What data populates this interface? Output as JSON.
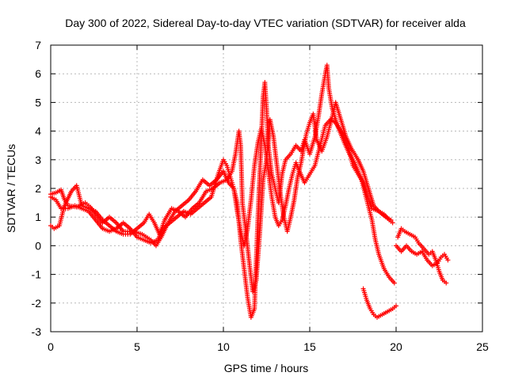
{
  "chart_data": {
    "type": "scatter",
    "title": "Day 300 of 2022, Sidereal Day-to-day VTEC variation (SDTVAR) for receiver alda",
    "xlabel": "GPS time / hours",
    "ylabel": "SDTVAR / TECUs",
    "xlim": [
      0,
      25
    ],
    "ylim": [
      -3,
      7
    ],
    "xticks": [
      0,
      5,
      10,
      15,
      20,
      25
    ],
    "yticks": [
      -3,
      -2,
      -1,
      0,
      1,
      2,
      3,
      4,
      5,
      6,
      7
    ],
    "grid": true,
    "marker": "+",
    "series": [
      {
        "name": "trace-1",
        "color": "#ff0000",
        "points": [
          [
            0.0,
            1.8
          ],
          [
            0.3,
            1.85
          ],
          [
            0.6,
            1.95
          ],
          [
            0.8,
            1.6
          ],
          [
            1.0,
            1.4
          ],
          [
            1.5,
            1.35
          ],
          [
            2.0,
            1.5
          ],
          [
            2.3,
            1.35
          ],
          [
            2.6,
            1.1
          ],
          [
            3.0,
            0.8
          ],
          [
            3.4,
            1.0
          ],
          [
            3.8,
            0.8
          ],
          [
            4.2,
            0.5
          ],
          [
            4.8,
            0.5
          ],
          [
            5.3,
            0.4
          ],
          [
            5.8,
            0.2
          ],
          [
            6.1,
            0.0
          ],
          [
            6.4,
            0.3
          ],
          [
            6.8,
            0.8
          ],
          [
            7.2,
            1.2
          ],
          [
            7.6,
            1.4
          ],
          [
            8.0,
            1.6
          ],
          [
            8.4,
            1.9
          ],
          [
            8.8,
            2.3
          ],
          [
            9.2,
            2.1
          ],
          [
            9.6,
            2.3
          ],
          [
            10.0,
            2.6
          ],
          [
            10.3,
            2.2
          ],
          [
            10.6,
            2.0
          ],
          [
            10.8,
            1.5
          ],
          [
            11.0,
            0.2
          ],
          [
            11.2,
            -0.8
          ],
          [
            11.4,
            -1.8
          ],
          [
            11.6,
            -2.5
          ],
          [
            11.8,
            -2.2
          ],
          [
            11.9,
            -0.5
          ],
          [
            12.0,
            1.0
          ],
          [
            12.2,
            3.8
          ],
          [
            12.3,
            5.2
          ],
          [
            12.4,
            5.7
          ],
          [
            12.5,
            4.8
          ],
          [
            12.6,
            3.5
          ],
          [
            12.8,
            2.5
          ],
          [
            13.0,
            2.0
          ],
          [
            13.2,
            1.5
          ],
          [
            13.4,
            2.5
          ],
          [
            13.6,
            3.0
          ],
          [
            13.9,
            3.2
          ],
          [
            14.2,
            3.5
          ],
          [
            14.5,
            3.3
          ],
          [
            14.7,
            3.7
          ],
          [
            15.0,
            3.2
          ],
          [
            15.3,
            3.8
          ],
          [
            15.5,
            4.5
          ],
          [
            15.7,
            5.3
          ],
          [
            15.9,
            6.0
          ],
          [
            16.0,
            6.3
          ],
          [
            16.1,
            5.5
          ],
          [
            16.3,
            4.8
          ],
          [
            16.6,
            4.2
          ],
          [
            17.0,
            3.6
          ],
          [
            17.3,
            3.2
          ],
          [
            17.6,
            2.9
          ],
          [
            18.0,
            2.3
          ],
          [
            18.3,
            1.6
          ],
          [
            18.6,
            0.9
          ],
          [
            18.8,
            0.2
          ],
          [
            19.0,
            -0.3
          ],
          [
            19.3,
            -0.8
          ],
          [
            19.6,
            -1.1
          ],
          [
            19.9,
            -1.3
          ]
        ]
      },
      {
        "name": "trace-2",
        "color": "#ff0000",
        "points": [
          [
            0.0,
            0.7
          ],
          [
            0.2,
            0.6
          ],
          [
            0.5,
            0.7
          ],
          [
            0.8,
            1.4
          ],
          [
            1.2,
            1.9
          ],
          [
            1.5,
            2.1
          ],
          [
            1.8,
            1.4
          ],
          [
            2.2,
            1.3
          ],
          [
            2.6,
            1.2
          ],
          [
            3.0,
            0.9
          ],
          [
            3.4,
            0.7
          ],
          [
            3.8,
            0.5
          ],
          [
            4.2,
            0.4
          ],
          [
            4.6,
            0.4
          ],
          [
            5.0,
            0.6
          ],
          [
            5.4,
            0.8
          ],
          [
            5.7,
            1.1
          ],
          [
            6.0,
            0.8
          ],
          [
            6.3,
            0.4
          ],
          [
            6.6,
            0.9
          ],
          [
            7.0,
            1.3
          ],
          [
            7.4,
            1.2
          ],
          [
            7.8,
            1.0
          ],
          [
            8.2,
            1.3
          ],
          [
            8.6,
            1.5
          ],
          [
            9.0,
            1.9
          ],
          [
            9.4,
            2.0
          ],
          [
            9.8,
            2.2
          ],
          [
            10.2,
            2.3
          ],
          [
            10.5,
            2.6
          ],
          [
            10.7,
            3.2
          ],
          [
            10.9,
            4.0
          ],
          [
            11.0,
            3.5
          ],
          [
            11.1,
            1.5
          ],
          [
            11.3,
            0.5
          ],
          [
            11.5,
            -0.6
          ],
          [
            11.7,
            -1.6
          ],
          [
            11.9,
            -1.2
          ],
          [
            12.1,
            0.4
          ],
          [
            12.3,
            2.3
          ],
          [
            12.5,
            3.0
          ],
          [
            12.7,
            4.4
          ],
          [
            12.9,
            3.8
          ],
          [
            13.1,
            2.8
          ],
          [
            13.3,
            1.8
          ],
          [
            13.5,
            1.0
          ],
          [
            13.7,
            0.5
          ],
          [
            13.9,
            1.0
          ],
          [
            14.1,
            1.6
          ],
          [
            14.3,
            2.4
          ],
          [
            14.5,
            2.9
          ],
          [
            14.8,
            3.9
          ],
          [
            15.0,
            4.3
          ],
          [
            15.2,
            4.6
          ],
          [
            15.4,
            3.7
          ],
          [
            15.7,
            3.3
          ],
          [
            16.0,
            3.8
          ],
          [
            16.3,
            4.5
          ],
          [
            16.5,
            5.0
          ],
          [
            16.8,
            4.4
          ],
          [
            17.1,
            3.8
          ],
          [
            17.4,
            3.4
          ],
          [
            17.8,
            3.0
          ],
          [
            18.1,
            2.6
          ],
          [
            18.4,
            2.0
          ],
          [
            18.7,
            1.4
          ],
          [
            19.0,
            1.2
          ],
          [
            19.3,
            1.1
          ],
          [
            19.6,
            0.9
          ],
          [
            19.8,
            0.8
          ]
        ]
      },
      {
        "name": "trace-3",
        "color": "#ff0000",
        "points": [
          [
            0.0,
            1.7
          ],
          [
            0.3,
            1.6
          ],
          [
            0.6,
            1.3
          ],
          [
            1.0,
            1.3
          ],
          [
            1.4,
            1.4
          ],
          [
            1.8,
            1.3
          ],
          [
            2.2,
            1.2
          ],
          [
            2.6,
            0.9
          ],
          [
            3.0,
            0.6
          ],
          [
            3.4,
            0.5
          ],
          [
            3.8,
            0.6
          ],
          [
            4.2,
            0.8
          ],
          [
            4.6,
            0.6
          ],
          [
            5.0,
            0.3
          ],
          [
            5.4,
            0.2
          ],
          [
            5.8,
            0.1
          ],
          [
            6.2,
            0.2
          ],
          [
            6.5,
            0.6
          ],
          [
            6.9,
            0.8
          ],
          [
            7.3,
            1.0
          ],
          [
            7.7,
            1.2
          ],
          [
            8.1,
            1.1
          ],
          [
            8.5,
            1.3
          ],
          [
            8.9,
            1.5
          ],
          [
            9.3,
            1.7
          ],
          [
            9.7,
            2.5
          ],
          [
            10.0,
            3.0
          ],
          [
            10.2,
            2.8
          ],
          [
            10.4,
            2.4
          ],
          [
            10.6,
            2.0
          ],
          [
            10.8,
            1.2
          ],
          [
            11.0,
            0.5
          ],
          [
            11.2,
            0.0
          ],
          [
            11.4,
            0.6
          ],
          [
            11.6,
            1.6
          ],
          [
            11.8,
            2.8
          ],
          [
            12.0,
            3.6
          ],
          [
            12.2,
            4.1
          ],
          [
            12.4,
            3.5
          ],
          [
            12.6,
            2.6
          ],
          [
            12.8,
            1.7
          ],
          [
            13.0,
            1.0
          ],
          [
            13.2,
            0.7
          ],
          [
            13.4,
            0.9
          ],
          [
            13.6,
            1.4
          ],
          [
            13.8,
            2.0
          ],
          [
            14.0,
            2.5
          ],
          [
            14.2,
            2.9
          ],
          [
            14.4,
            2.6
          ],
          [
            14.7,
            2.2
          ],
          [
            15.0,
            2.5
          ],
          [
            15.3,
            2.8
          ],
          [
            15.6,
            3.5
          ],
          [
            15.9,
            4.2
          ],
          [
            16.2,
            4.4
          ],
          [
            16.5,
            4.3
          ],
          [
            16.8,
            4.0
          ],
          [
            17.2,
            3.5
          ],
          [
            17.5,
            2.8
          ],
          [
            17.8,
            2.5
          ],
          [
            18.1,
            2.2
          ],
          [
            18.4,
            1.6
          ],
          [
            18.6,
            1.3
          ],
          [
            19.0,
            1.2
          ],
          [
            19.4,
            1.0
          ],
          [
            19.7,
            0.9
          ]
        ]
      },
      {
        "name": "trace-4",
        "color": "#ff0000",
        "points": [
          [
            18.1,
            -1.5
          ],
          [
            18.3,
            -1.9
          ],
          [
            18.5,
            -2.2
          ],
          [
            18.7,
            -2.4
          ],
          [
            18.9,
            -2.5
          ],
          [
            19.2,
            -2.4
          ],
          [
            19.5,
            -2.3
          ],
          [
            19.8,
            -2.2
          ],
          [
            20.0,
            -2.1
          ]
        ]
      },
      {
        "name": "trace-5",
        "color": "#ff0000",
        "points": [
          [
            20.1,
            0.3
          ],
          [
            20.3,
            0.6
          ],
          [
            20.5,
            0.5
          ],
          [
            20.8,
            0.4
          ],
          [
            21.1,
            0.3
          ],
          [
            21.3,
            0.1
          ],
          [
            21.6,
            -0.1
          ],
          [
            21.9,
            -0.3
          ],
          [
            22.1,
            -0.2
          ],
          [
            22.3,
            -0.5
          ],
          [
            22.5,
            -0.9
          ],
          [
            22.7,
            -1.2
          ],
          [
            22.9,
            -1.3
          ]
        ]
      },
      {
        "name": "trace-6",
        "color": "#ff0000",
        "points": [
          [
            20.0,
            0.0
          ],
          [
            20.3,
            -0.2
          ],
          [
            20.6,
            0.0
          ],
          [
            20.9,
            -0.2
          ],
          [
            21.2,
            -0.3
          ],
          [
            21.5,
            -0.2
          ],
          [
            21.8,
            -0.5
          ],
          [
            22.1,
            -0.7
          ],
          [
            22.4,
            -0.6
          ],
          [
            22.6,
            -0.4
          ],
          [
            22.8,
            -0.3
          ],
          [
            23.0,
            -0.5
          ]
        ]
      }
    ]
  }
}
